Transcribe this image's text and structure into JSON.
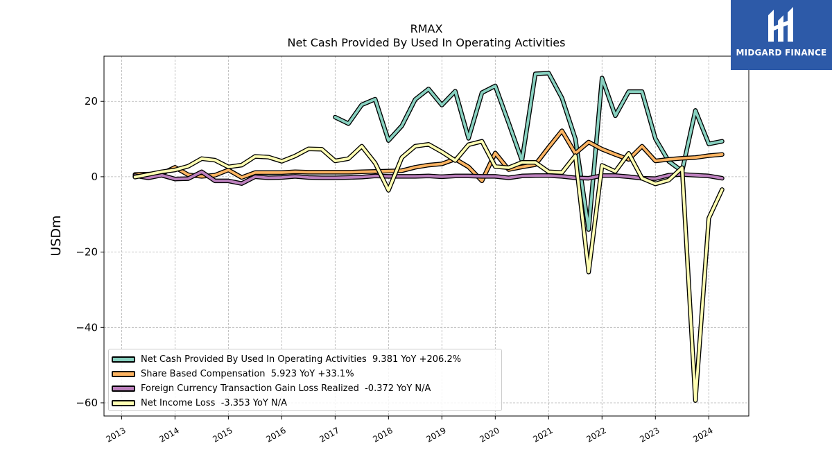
{
  "chart_data": {
    "type": "line",
    "title": "RMAX",
    "subtitle": "Net Cash Provided By Used In Operating Activities",
    "xlabel": "",
    "ylabel": "USDm",
    "xlim": [
      2012.67,
      2024.75
    ],
    "ylim": [
      -63.5,
      32
    ],
    "x_ticks": [
      2013,
      2014,
      2015,
      2016,
      2017,
      2018,
      2019,
      2020,
      2021,
      2022,
      2023,
      2024
    ],
    "x_tick_labels": [
      "2013",
      "2014",
      "2015",
      "2016",
      "2017",
      "2018",
      "2019",
      "2020",
      "2021",
      "2022",
      "2023",
      "2024"
    ],
    "y_ticks": [
      -60,
      -40,
      -20,
      0,
      20
    ],
    "y_tick_labels": [
      "−60",
      "−40",
      "−20",
      "0",
      "20"
    ],
    "grid": true,
    "legend_position": "lower-left",
    "series": [
      {
        "name": "Net Cash Provided By Used In Operating Activities",
        "legend_label": "Net Cash Provided By Used In Operating Activities  9.381 YoY +206.2%",
        "color": "#88d1c0",
        "x": [
          2017.0,
          2017.25,
          2017.5,
          2017.75,
          2018.0,
          2018.25,
          2018.5,
          2018.75,
          2019.0,
          2019.25,
          2019.5,
          2019.75,
          2020.0,
          2020.25,
          2020.5,
          2020.75,
          2021.0,
          2021.25,
          2021.5,
          2021.75,
          2022.0,
          2022.25,
          2022.5,
          2022.75,
          2023.0,
          2023.25,
          2023.5,
          2023.75,
          2024.0,
          2024.25
        ],
        "y": [
          15.8,
          14.1,
          19.1,
          20.6,
          9.6,
          13.5,
          20.5,
          23.3,
          19.0,
          22.7,
          10.2,
          22.3,
          24.1,
          14.3,
          4.3,
          27.3,
          27.5,
          20.9,
          10.1,
          -14.0,
          26.2,
          16.2,
          22.6,
          22.6,
          10.1,
          4.1,
          1.5,
          17.6,
          8.7,
          9.4
        ]
      },
      {
        "name": "Share Based Compensation",
        "legend_label": "Share Based Compensation  5.923 YoY +33.1%",
        "color": "#fdb462",
        "x": [
          2013.25,
          2013.5,
          2013.75,
          2014.0,
          2014.25,
          2014.5,
          2014.75,
          2015.0,
          2015.25,
          2015.5,
          2015.75,
          2016.0,
          2016.25,
          2016.5,
          2016.75,
          2017.0,
          2017.25,
          2017.5,
          2017.75,
          2018.0,
          2018.25,
          2018.5,
          2018.75,
          2019.0,
          2019.25,
          2019.5,
          2019.75,
          2020.0,
          2020.25,
          2020.5,
          2020.75,
          2021.0,
          2021.25,
          2021.5,
          2021.75,
          2022.0,
          2022.25,
          2022.5,
          2022.75,
          2023.0,
          2023.25,
          2023.5,
          2023.75,
          2024.0,
          2024.25
        ],
        "y": [
          0.6,
          0.7,
          0.8,
          2.5,
          0.5,
          0.1,
          0.4,
          1.8,
          -0.2,
          1.1,
          1.1,
          1.1,
          1.3,
          1.2,
          1.2,
          1.2,
          1.2,
          1.3,
          1.4,
          1.5,
          1.6,
          2.5,
          3.1,
          3.4,
          4.7,
          2.6,
          -1.1,
          6.3,
          1.9,
          2.6,
          3.2,
          7.8,
          12.2,
          6.2,
          9.2,
          7.3,
          5.9,
          4.6,
          8.1,
          4.2,
          4.6,
          4.9,
          5.1,
          5.6,
          5.9
        ]
      },
      {
        "name": "Foreign Currency Transaction Gain Loss Realized",
        "legend_label": "Foreign Currency Transaction Gain Loss Realized  -0.372 YoY N/A",
        "color": "#bc80bd",
        "x": [
          2013.25,
          2013.5,
          2013.75,
          2014.0,
          2014.25,
          2014.5,
          2014.75,
          2015.0,
          2015.25,
          2015.5,
          2015.75,
          2016.0,
          2016.25,
          2016.5,
          2016.75,
          2017.0,
          2017.25,
          2017.5,
          2017.75,
          2018.0,
          2018.25,
          2018.5,
          2018.75,
          2019.0,
          2019.25,
          2019.5,
          2019.75,
          2020.0,
          2020.25,
          2020.5,
          2020.75,
          2021.0,
          2021.25,
          2021.5,
          2021.75,
          2022.0,
          2022.25,
          2022.5,
          2022.75,
          2023.0,
          2023.25,
          2023.5,
          2023.75,
          2024.0,
          2024.25
        ],
        "y": [
          0.3,
          -0.3,
          0.4,
          -0.6,
          -0.5,
          1.3,
          -1.1,
          -1.1,
          -1.8,
          0.0,
          -0.3,
          -0.2,
          0.1,
          -0.2,
          -0.3,
          -0.3,
          -0.2,
          -0.1,
          0.2,
          0.1,
          0.1,
          0.1,
          0.2,
          0.0,
          0.2,
          0.2,
          0.1,
          0.1,
          -0.3,
          0.2,
          0.3,
          0.3,
          0.1,
          -0.3,
          -0.4,
          0.3,
          0.3,
          0.0,
          -0.4,
          -0.5,
          0.4,
          0.6,
          0.4,
          0.2,
          -0.4
        ]
      },
      {
        "name": "Net Income Loss",
        "legend_label": "Net Income Loss  -3.353 YoY N/A",
        "color": "#ffffb3",
        "x": [
          2013.25,
          2013.5,
          2013.75,
          2014.0,
          2014.25,
          2014.5,
          2014.75,
          2015.0,
          2015.25,
          2015.5,
          2015.75,
          2016.0,
          2016.25,
          2016.5,
          2016.75,
          2017.0,
          2017.25,
          2017.5,
          2017.75,
          2018.0,
          2018.25,
          2018.5,
          2018.75,
          2019.0,
          2019.25,
          2019.5,
          2019.75,
          2020.0,
          2020.25,
          2020.5,
          2020.75,
          2021.0,
          2021.25,
          2021.5,
          2021.75,
          2022.0,
          2022.25,
          2022.5,
          2022.75,
          2023.0,
          2023.25,
          2023.5,
          2023.75,
          2024.0,
          2024.25
        ],
        "y": [
          -0.1,
          0.6,
          1.3,
          1.8,
          2.8,
          4.8,
          4.4,
          2.6,
          3.1,
          5.4,
          5.2,
          4.1,
          5.5,
          7.4,
          7.3,
          4.2,
          4.8,
          8.1,
          3.6,
          -3.6,
          5.1,
          8.1,
          8.6,
          6.6,
          4.3,
          8.5,
          9.4,
          2.7,
          2.4,
          3.8,
          3.8,
          1.3,
          1.1,
          5.6,
          -25.3,
          3.0,
          1.4,
          6.2,
          -0.4,
          -1.9,
          -0.9,
          2.4,
          -59.4,
          -11.0,
          -3.4
        ]
      }
    ]
  },
  "logo": {
    "text": "MIDGARD FINANCE",
    "color": "#2d5aa8"
  }
}
